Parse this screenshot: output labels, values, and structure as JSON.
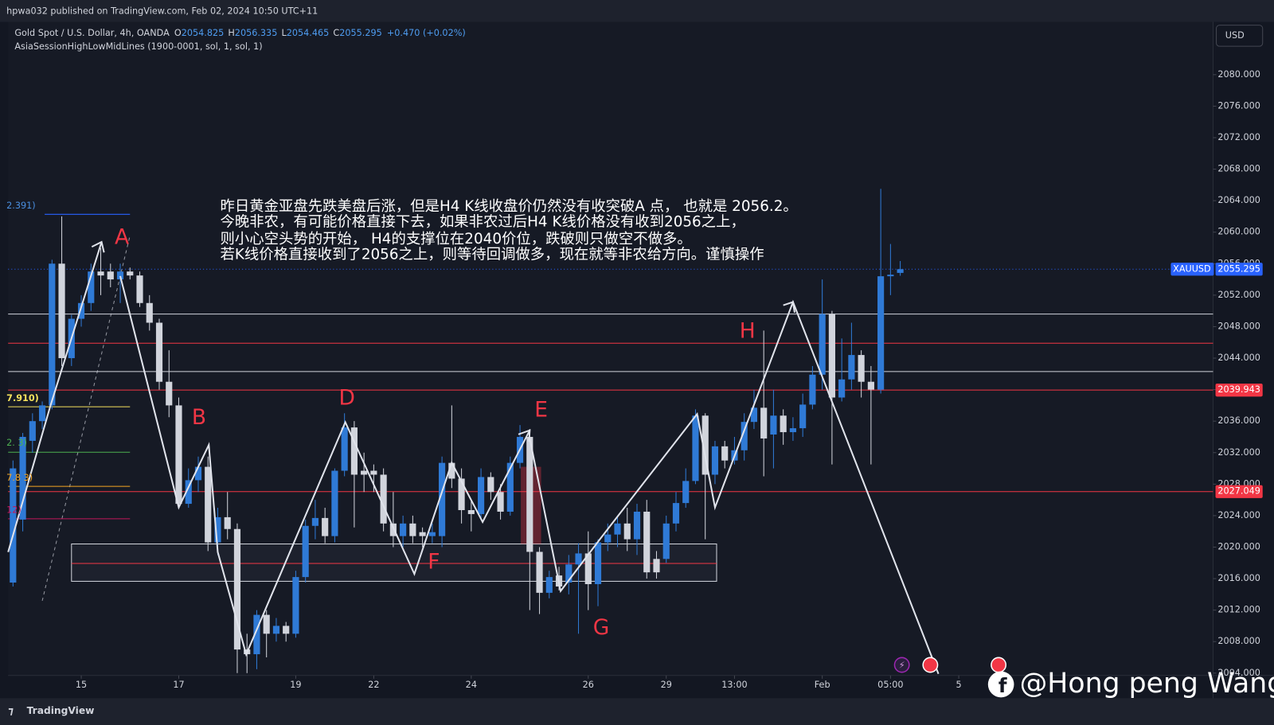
{
  "header": {
    "publisher": "hpwa032 published on TradingView.com, Feb 02, 2024 10:50 UTC+11"
  },
  "footer": {
    "brand": "TradingView",
    "watermark": "@Hong peng Wang"
  },
  "chart_data": {
    "type": "candlestick",
    "symbol_line": "Gold Spot / U.S. Dollar, 4h, OANDA",
    "ohlc_labels": [
      "O",
      "H",
      "L",
      "C"
    ],
    "change": "+0.470 (+0.02%)",
    "indicator": "AsiaSessionHighLowMidLines (1900-0001, sol, 1, sol, 1)",
    "currency": "USD",
    "symbol": "XAUUSD",
    "up_color": "#2f7ad6",
    "down_color": "#d1d4dc",
    "open": [
      2015.5,
      2023.5,
      2033.5,
      2036,
      2038,
      2056,
      2044,
      2049,
      2051,
      2055,
      2055,
      2054,
      2055,
      2054.5,
      2051,
      2048.5,
      2041,
      2038,
      2025.5,
      2028.5,
      2030.2,
      2020.6,
      2023.8,
      2022.3,
      2007,
      2006.4,
      2011.4,
      2009,
      2010,
      2009,
      2016.2,
      2022.7,
      2023.7,
      2021.4,
      2029.7,
      2035.2,
      2029.7,
      2029.7,
      2029.2,
      2023,
      2021.4,
      2023,
      2021.9,
      2021.4,
      2021.4,
      2030.7,
      2028.7,
      2024.7,
      2024.2,
      2028.9,
      2027,
      2024.5,
      2030.7,
      2034,
      2019.4,
      2014.2,
      2016.4,
      2015.5,
      2017.8,
      2019.2,
      2015.3,
      2020.6,
      2021.6,
      2023,
      2021,
      2024.5,
      2018.5,
      2018.5,
      2023,
      2025.6,
      2028.4,
      2036.7,
      2029.2,
      2032.8,
      2031,
      2032.3,
      2035.9,
      2037.7,
      2034.3,
      2036.7,
      2034.6,
      2035.1,
      2038.1,
      2041.9,
      2049.6,
      2039,
      2041.3,
      2044.4,
      2041,
      2040,
      2054.4,
      2054.825
    ],
    "high": [
      2031,
      2034.5,
      2037,
      2038.5,
      2056.5,
      2062,
      2049.5,
      2052,
      2056,
      2058,
      2056,
      2056,
      2055.5,
      2055,
      2052,
      2049,
      2045,
      2039,
      2030,
      2031.5,
      2031.5,
      2025,
      2027,
      2023,
      2009,
      2012,
      2012,
      2011,
      2010.5,
      2017,
      2023.5,
      2026,
      2025,
      2030,
      2037,
      2036,
      2032,
      2030.5,
      2030,
      2027,
      2024,
      2024,
      2022.5,
      2023,
      2031.5,
      2038,
      2030,
      2026,
      2030,
      2029.5,
      2028,
      2031.5,
      2035.5,
      2035,
      2020,
      2017,
      2017.5,
      2019,
      2020.5,
      2022,
      2021,
      2023,
      2024,
      2025,
      2025.5,
      2026,
      2019.5,
      2024,
      2027,
      2030,
      2037.5,
      2037,
      2033.5,
      2033.5,
      2034,
      2037,
      2040,
      2047.5,
      2040,
      2037.5,
      2036.5,
      2039.5,
      2043,
      2054,
      2050,
      2046.5,
      2048.5,
      2045,
      2043,
      2065.5,
      2058.5,
      2056.335
    ],
    "low": [
      2015,
      2022,
      2032,
      2035,
      2037.5,
      2043,
      2043,
      2048,
      2050,
      2052,
      2053,
      2051,
      2054,
      2050.5,
      2047.5,
      2040,
      2036.5,
      2025,
      2025,
      2027,
      2019.5,
      2019,
      2021,
      2004,
      2004,
      2004.5,
      2006,
      2008,
      2008,
      2008.5,
      2015.5,
      2021,
      2020.5,
      2020.6,
      2029,
      2022.5,
      2027,
      2027,
      2022,
      2020,
      2020,
      2020.5,
      2020,
      2020.5,
      2020,
      2027.5,
      2023,
      2022,
      2023.5,
      2026,
      2023.5,
      2024,
      2030,
      2012,
      2011.5,
      2013.5,
      2014.5,
      2014,
      2009,
      2012,
      2012.5,
      2019.5,
      2020,
      2019.5,
      2019,
      2016,
      2016,
      2018,
      2022,
      2025,
      2028,
      2021,
      2028,
      2030,
      2030.5,
      2031,
      2035,
      2029,
      2030,
      2033,
      2033.5,
      2034,
      2037.5,
      2040,
      2030.5,
      2038.5,
      2040,
      2039,
      2030.5,
      2039.5,
      2052,
      2054.465
    ],
    "close": [
      2030,
      2034,
      2036,
      2038,
      2056,
      2044,
      2049,
      2051,
      2055,
      2054.5,
      2054,
      2055,
      2054.5,
      2051,
      2048.5,
      2041,
      2038,
      2025.5,
      2028.5,
      2030.2,
      2020.6,
      2023.8,
      2022.3,
      2007,
      2006.4,
      2011.4,
      2009,
      2010,
      2009,
      2016.2,
      2022.7,
      2023.7,
      2021.4,
      2029.7,
      2035.2,
      2029.2,
      2029.2,
      2029.2,
      2023,
      2021.4,
      2023,
      2021.4,
      2021.4,
      2021.9,
      2030.7,
      2028.7,
      2024.7,
      2024.2,
      2028.9,
      2027,
      2024.5,
      2030.7,
      2034,
      2019.4,
      2014.2,
      2016.2,
      2015,
      2017.8,
      2019.2,
      2015.3,
      2020.6,
      2021.6,
      2023,
      2021,
      2024.5,
      2016.8,
      2016.8,
      2023,
      2025.6,
      2028.4,
      2036.7,
      2029.2,
      2032.8,
      2031,
      2032.3,
      2035.9,
      2037.7,
      2033.8,
      2036.7,
      2034.6,
      2035.1,
      2038.1,
      2041.9,
      2049.6,
      2039,
      2041.3,
      2044.4,
      2041,
      2040,
      2054.4,
      2054.6,
      2055.295
    ],
    "ylim": [
      2003.7,
      2086.7
    ],
    "yticks": [
      {
        "value": 2004,
        "label": "2004.000"
      },
      {
        "value": 2008,
        "label": "2008.000"
      },
      {
        "value": 2012,
        "label": "2012.000"
      },
      {
        "value": 2016,
        "label": "2016.000"
      },
      {
        "value": 2020,
        "label": "2020.000"
      },
      {
        "value": 2024,
        "label": "2024.000"
      },
      {
        "value": 2028,
        "label": "2028.000"
      },
      {
        "value": 2032,
        "label": "2032.000"
      },
      {
        "value": 2036,
        "label": "2036.000"
      },
      {
        "value": 2040,
        "label": "2040.000"
      },
      {
        "value": 2044,
        "label": "2044.000"
      },
      {
        "value": 2048,
        "label": "2048.000"
      },
      {
        "value": 2052,
        "label": "2052.000"
      },
      {
        "value": 2056,
        "label": "2056.000"
      },
      {
        "value": 2060,
        "label": "2060.000"
      },
      {
        "value": 2064,
        "label": "2064.000"
      },
      {
        "value": 2068,
        "label": "2068.000"
      },
      {
        "value": 2072,
        "label": "2072.000"
      },
      {
        "value": 2076,
        "label": "2076.000"
      },
      {
        "value": 2080,
        "label": "2080.000"
      }
    ],
    "xticks": [
      {
        "value": 7,
        "label": "15"
      },
      {
        "value": 17,
        "label": "17"
      },
      {
        "value": 29,
        "label": "19"
      },
      {
        "value": 37,
        "label": "22"
      },
      {
        "value": 47,
        "label": "24"
      },
      {
        "value": 59,
        "label": "26"
      },
      {
        "value": 67,
        "label": "29"
      },
      {
        "value": 74,
        "label": "13:00"
      },
      {
        "value": 83,
        "label": "Feb"
      },
      {
        "value": 90,
        "label": "05:00"
      },
      {
        "value": 97,
        "label": "5"
      }
    ],
    "lines": [
      {
        "value": 2049.6,
        "color": "#d1d4dc"
      },
      {
        "value": 2045.9,
        "color": "#f23645"
      },
      {
        "value": 2042.3,
        "color": "#d1d4dc"
      }
    ],
    "price_lines": [
      {
        "value": 2039.943,
        "color": "#f23645"
      },
      {
        "value": 2027.049,
        "color": "#f23645"
      }
    ],
    "fib_labels": [
      {
        "text": "2.391)",
        "color": "#4a8fe0"
      },
      {
        "text": "7.910)",
        "color": "#f5e15c"
      },
      {
        "text": "2. 3)",
        "color": "#4caf50"
      },
      {
        "text": "7.8 3)",
        "color": "#f5a623"
      },
      {
        "text": "12)",
        "color": "#c2185b"
      }
    ],
    "points": [
      "A",
      "B",
      "D",
      "E",
      "F",
      "G",
      "H"
    ],
    "note": [
      "昨日黄金亚盘先跌美盘后涨，但是H4 K线收盘价仍然没有收突破A 点， 也就是 2056.2。",
      "今晚非农，有可能价格直接下去，如果非农过后H4 K线价格没有收到2056之上，",
      "则小心空头势的开始， H4的支撑位在2040价位，跌破则只做空不做多。",
      "若K线价格直接收到了2056之上，则等待回调做多，现在就等非农给方向。谨慎操作"
    ]
  }
}
